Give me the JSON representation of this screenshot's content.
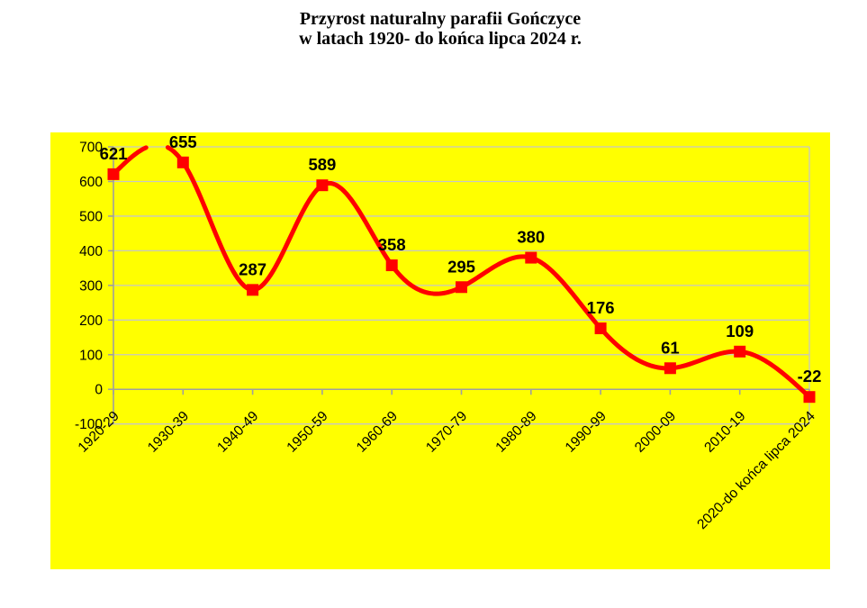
{
  "title": {
    "line1": "Przyrost naturalny parafii Gończyce",
    "line2": "w latach 1920- do końca lipca 2024 r."
  },
  "chart_data": {
    "type": "line",
    "smooth": true,
    "title": "Przyrost naturalny parafii Gończyce w latach 1920- do końca lipca 2024 r.",
    "categories": [
      "1920-29",
      "1930-39",
      "1940-49",
      "1950-59",
      "1960-69",
      "1970-79",
      "1980-89",
      "1990-99",
      "2000-09",
      "2010-19",
      "2020-do końca lipca 2024"
    ],
    "values": [
      621,
      655,
      287,
      589,
      358,
      295,
      380,
      176,
      61,
      109,
      -22
    ],
    "data_labels": [
      "621",
      "655",
      "287",
      "589",
      "358",
      "295",
      "380",
      "176",
      "61",
      "109",
      "-22"
    ],
    "xlabel": "",
    "ylabel": "",
    "ylim": [
      -100,
      700
    ],
    "y_ticks": [
      -100,
      0,
      100,
      200,
      300,
      400,
      500,
      600,
      700
    ],
    "grid": "horizontal",
    "legend": "none",
    "marker_shape": "square",
    "colors": {
      "chart_background": "#ffff00",
      "series_line": "#ff0000",
      "marker": "#ff0000",
      "gridline": "#c6c6c6",
      "axis": "#9f9f9f",
      "text": "#000000",
      "page_background": "#ffffff"
    }
  }
}
